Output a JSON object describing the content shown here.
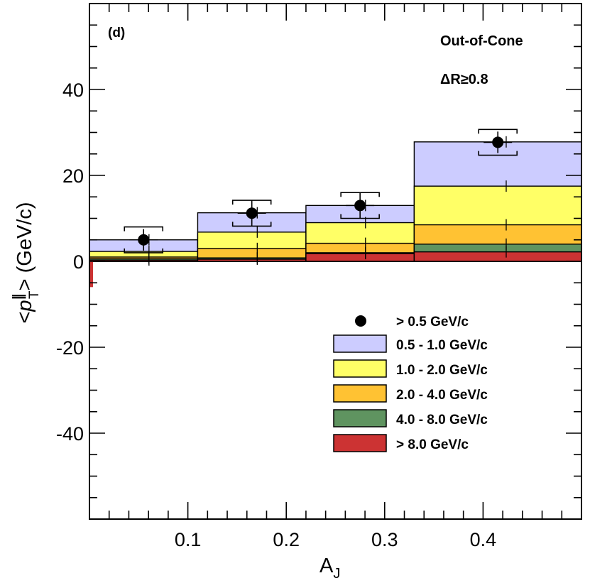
{
  "chart_data": {
    "type": "bar",
    "panel_label": "(d)",
    "annotations": [
      "Out-of-Cone",
      "ΔR≥0.8"
    ],
    "xlabel": "A",
    "xlabel_sub": "J",
    "ylabel_prefix": "<",
    "ylabel_symbol": "p",
    "ylabel_sup": "∥",
    "ylabel_sub": "T",
    "ylabel_suffix": "> (GeV/c)",
    "xlim": [
      0.0,
      0.5
    ],
    "ylim": [
      -60,
      60
    ],
    "xticks": [
      0.1,
      0.2,
      0.3,
      0.4
    ],
    "xtick_labels": [
      "0.1",
      "0.2",
      "0.3",
      "0.4"
    ],
    "yticks": [
      -40,
      -20,
      0,
      20,
      40
    ],
    "ytick_labels": [
      "-40",
      "-20",
      "0",
      "20",
      "40"
    ],
    "bin_edges": [
      0.0,
      0.11,
      0.22,
      0.33,
      0.5
    ],
    "stack_series": [
      {
        "name": "> 8.0 GeV/c",
        "color": "#cc3333",
        "values": [
          0.3,
          0.5,
          1.8,
          2.2
        ]
      },
      {
        "name": "4.0 - 8.0 GeV/c",
        "color": "#5f9460",
        "values": [
          0.6,
          0.8,
          2.0,
          4.0
        ]
      },
      {
        "name": "2.0 - 4.0 GeV/c",
        "color": "#ffc233",
        "values": [
          1.0,
          3.0,
          4.2,
          8.5
        ]
      },
      {
        "name": "1.0 - 2.0 GeV/c",
        "color": "#ffff66",
        "values": [
          2.3,
          6.8,
          9.0,
          17.5
        ]
      },
      {
        "name": "0.5 - 1.0 GeV/c",
        "color": "#ccccff",
        "values": [
          5.0,
          11.3,
          13.0,
          27.8
        ]
      }
    ],
    "total_series": {
      "name": "> 0.5 GeV/c",
      "x": [
        0.055,
        0.165,
        0.275,
        0.415
      ],
      "values": [
        5.0,
        11.2,
        13.0,
        27.7
      ],
      "stat_err": [
        2.5,
        3.0,
        3.0,
        2.5
      ],
      "sys_err": [
        3.0,
        3.0,
        3.0,
        3.0
      ]
    },
    "legend_position": "lower-right"
  }
}
